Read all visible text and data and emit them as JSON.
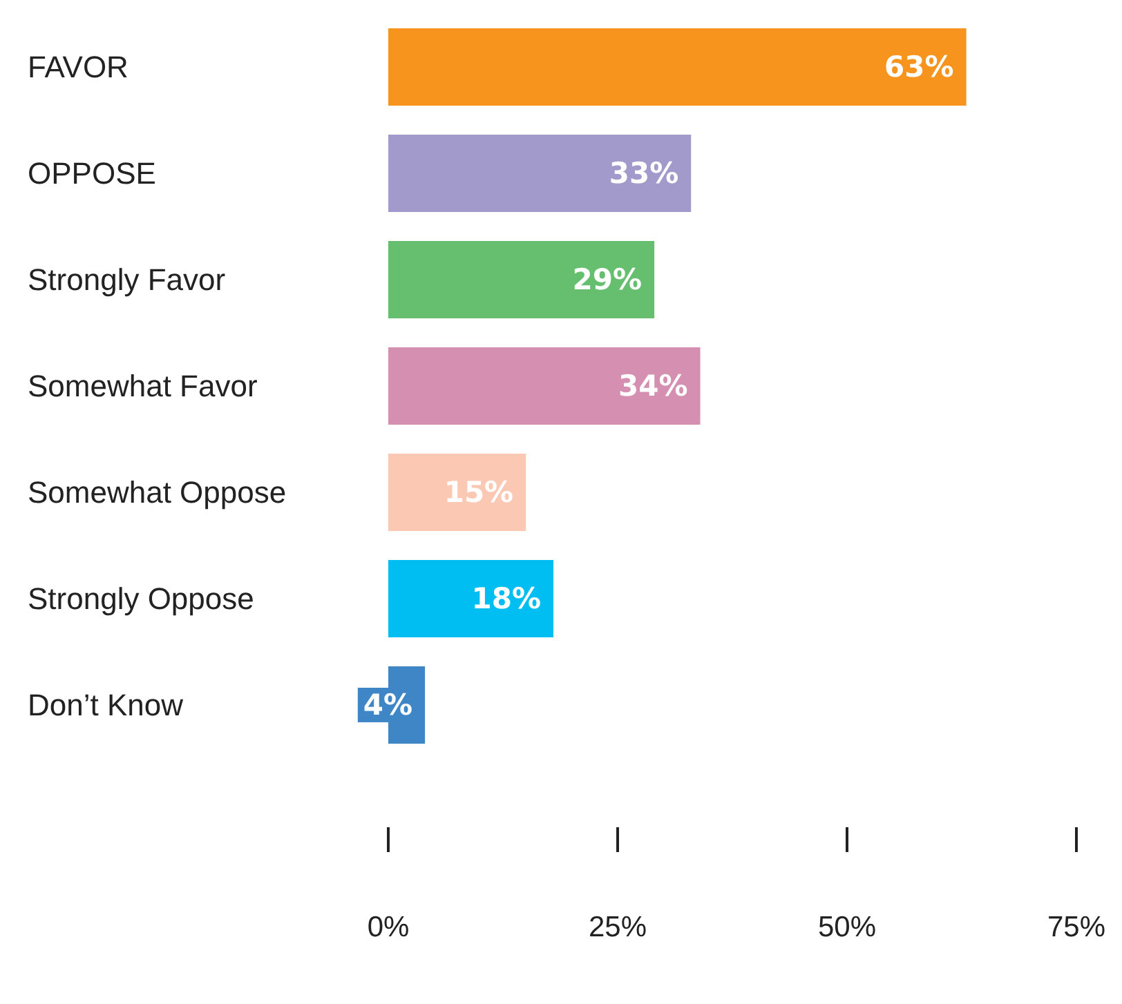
{
  "chart_data": {
    "type": "bar",
    "orientation": "horizontal",
    "categories": [
      "FAVOR",
      "OPPOSE",
      "Strongly Favor",
      "Somewhat Favor",
      "Somewhat Oppose",
      "Strongly Oppose",
      "Don’t Know"
    ],
    "values": [
      63,
      33,
      29,
      34,
      15,
      18,
      4
    ],
    "colors": [
      "#f7941d",
      "#a29acb",
      "#66bf6f",
      "#d58fb1",
      "#fbc8b4",
      "#00bdf2",
      "#3f86c7"
    ],
    "value_labels": [
      "63%",
      "33%",
      "29%",
      "34%",
      "15%",
      "18%",
      "4%"
    ],
    "xlim": [
      0,
      75
    ],
    "xticks": [
      {
        "value": 0,
        "label": "0%"
      },
      {
        "value": 25,
        "label": "25%"
      },
      {
        "value": 50,
        "label": "50%"
      },
      {
        "value": 75,
        "label": "75%"
      }
    ],
    "grid": false
  }
}
